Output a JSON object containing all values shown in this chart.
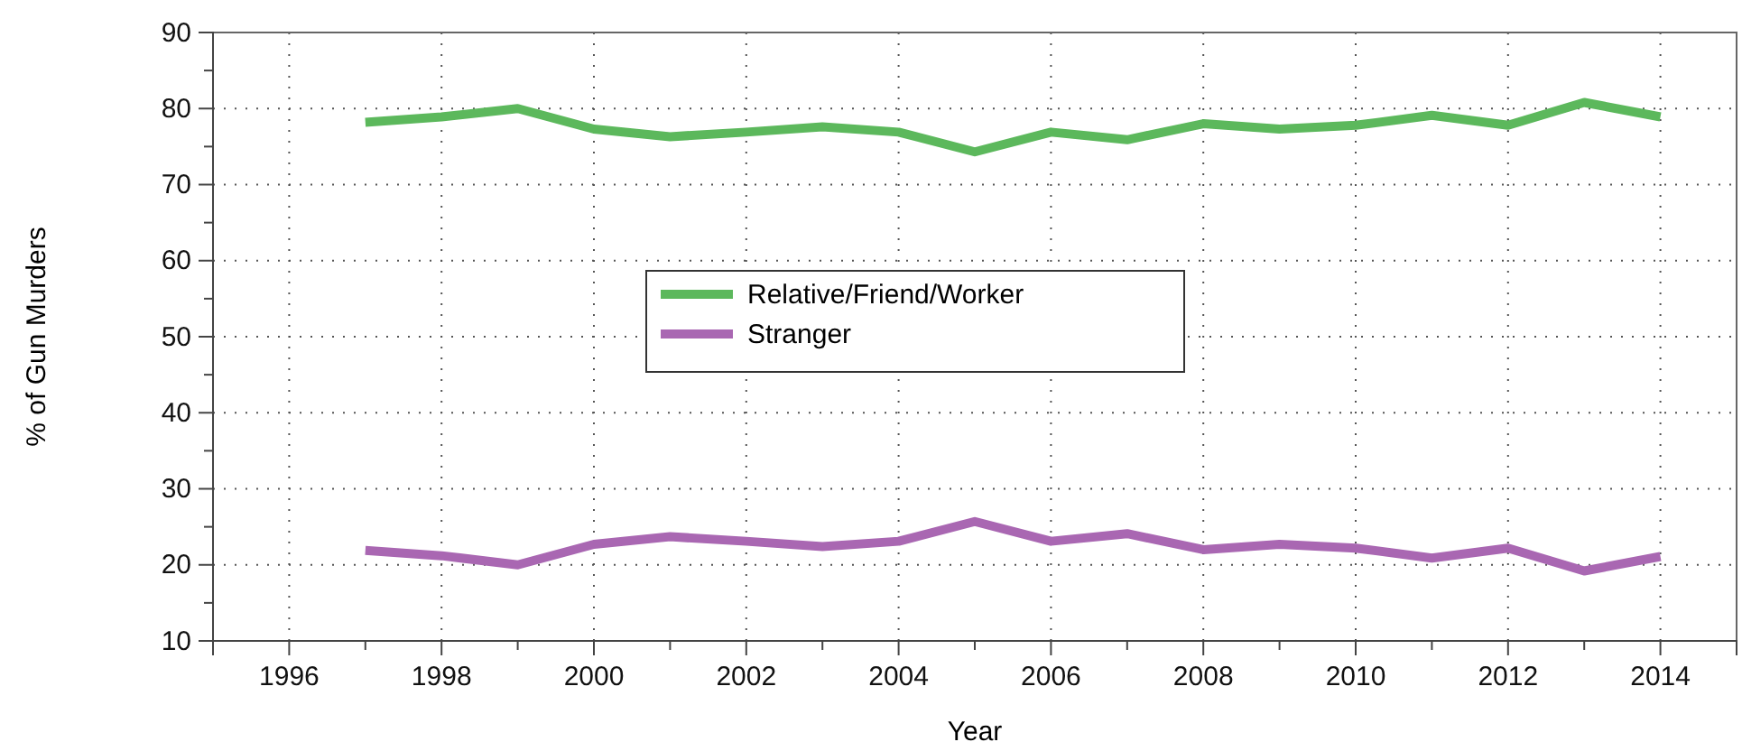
{
  "chart_data": {
    "type": "line",
    "xlabel": "Year",
    "ylabel": "% of Gun Murders",
    "x": [
      1997,
      1998,
      1999,
      2000,
      2001,
      2002,
      2003,
      2004,
      2005,
      2006,
      2007,
      2008,
      2009,
      2010,
      2011,
      2012,
      2013,
      2014
    ],
    "series": [
      {
        "name": "Relative/Friend/Worker",
        "color": "#5cb85c",
        "values": [
          78.2,
          78.9,
          80.0,
          77.3,
          76.3,
          76.9,
          77.6,
          76.9,
          74.3,
          76.9,
          75.9,
          78.0,
          77.3,
          77.8,
          79.1,
          77.8,
          80.8,
          78.9
        ]
      },
      {
        "name": "Stranger",
        "color": "#a967b2",
        "values": [
          21.9,
          21.2,
          20.0,
          22.7,
          23.7,
          23.1,
          22.4,
          23.1,
          25.7,
          23.1,
          24.1,
          22.0,
          22.7,
          22.2,
          20.9,
          22.2,
          19.2,
          21.1
        ]
      }
    ],
    "xlim": [
      1995,
      2015
    ],
    "xticks": [
      1996,
      1998,
      2000,
      2002,
      2004,
      2006,
      2008,
      2010,
      2012,
      2014
    ],
    "ylim": [
      10,
      90
    ],
    "yticks": [
      10,
      20,
      30,
      40,
      50,
      60,
      70,
      80,
      90
    ],
    "grid": true,
    "legend": "center",
    "marker": "none",
    "line_style": "solid"
  }
}
